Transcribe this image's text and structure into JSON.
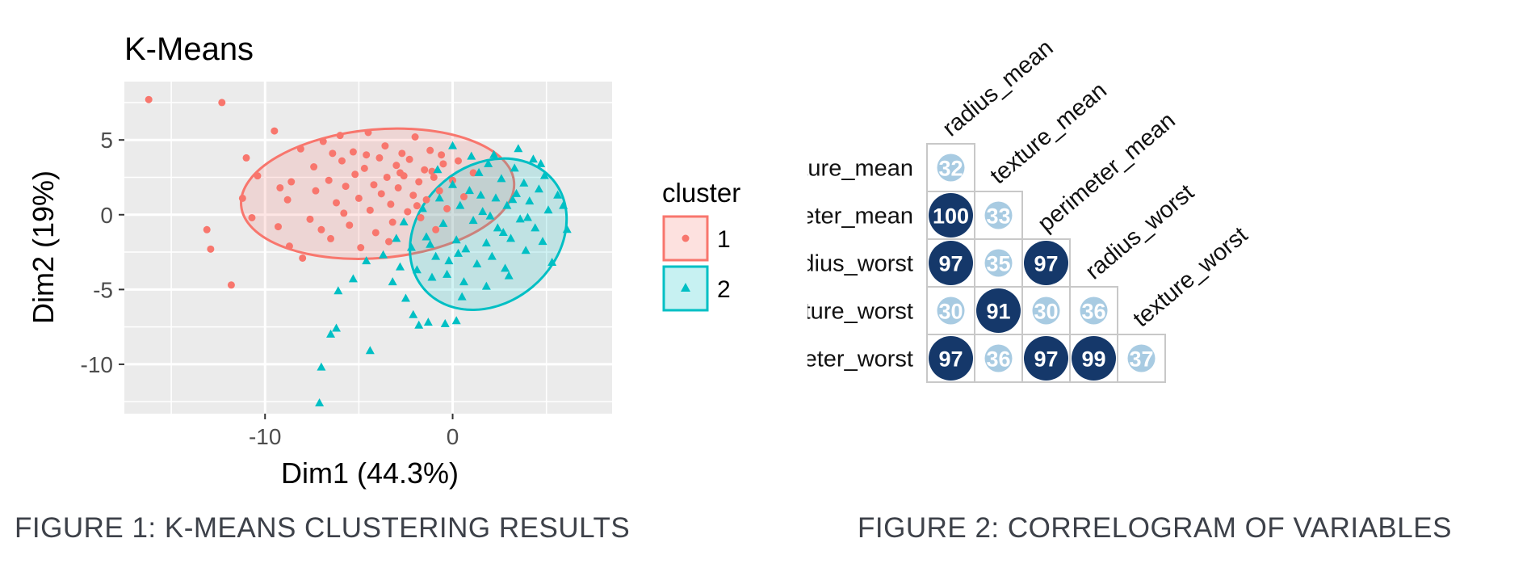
{
  "figure1": {
    "caption": "FIGURE 1: K-MEANS CLUSTERING RESULTS",
    "chart_data": {
      "type": "scatter",
      "title": "K-Means",
      "xlabel": "Dim1 (44.3%)",
      "ylabel": "Dim2 (19%)",
      "xlim": [
        -17.5,
        8.5
      ],
      "ylim": [
        -13.3,
        8.9
      ],
      "xticks": [
        -10,
        0
      ],
      "yticks": [
        5,
        0,
        -5,
        -10
      ],
      "xtick_labels": [
        "-10",
        "0"
      ],
      "ytick_labels": [
        "5",
        "0",
        "-5",
        "-10"
      ],
      "grid": true,
      "background": "#ebebeb",
      "legend": {
        "title": "cluster",
        "position": "right",
        "entries": [
          "1",
          "2"
        ]
      },
      "series": [
        {
          "name": "1",
          "marker": "circle",
          "color": "#f8766d",
          "ellipse": {
            "cx": -4.0,
            "cy": 1.4,
            "rx": 7.3,
            "ry": 4.3,
            "angle_deg": 5
          },
          "points": [
            [
              -16.2,
              7.7
            ],
            [
              -12.3,
              7.5
            ],
            [
              -13.1,
              -1.0
            ],
            [
              -12.9,
              -2.3
            ],
            [
              -11.8,
              -4.7
            ],
            [
              -11.2,
              1.1
            ],
            [
              -11.0,
              3.8
            ],
            [
              -10.4,
              2.6
            ],
            [
              -9.5,
              5.6
            ],
            [
              -9.2,
              1.8
            ],
            [
              -9.3,
              -0.8
            ],
            [
              -8.7,
              -2.1
            ],
            [
              -8.6,
              2.2
            ],
            [
              -8.8,
              1.0
            ],
            [
              -8.1,
              4.4
            ],
            [
              -8.0,
              -2.9
            ],
            [
              -7.6,
              -0.3
            ],
            [
              -7.4,
              3.2
            ],
            [
              -7.3,
              1.6
            ],
            [
              -6.9,
              4.9
            ],
            [
              -6.6,
              2.3
            ],
            [
              -6.5,
              -1.6
            ],
            [
              -6.2,
              0.8
            ],
            [
              -6.0,
              5.3
            ],
            [
              -5.9,
              3.6
            ],
            [
              -5.7,
              1.9
            ],
            [
              -5.5,
              -0.7
            ],
            [
              -5.3,
              4.2
            ],
            [
              -5.2,
              2.7
            ],
            [
              -5.0,
              1.1
            ],
            [
              -4.9,
              -2.2
            ],
            [
              -4.7,
              3.1
            ],
            [
              -4.5,
              5.5
            ],
            [
              -4.4,
              0.3
            ],
            [
              -4.2,
              2.0
            ],
            [
              -4.1,
              -1.2
            ],
            [
              -3.9,
              3.8
            ],
            [
              -3.8,
              1.4
            ],
            [
              -3.6,
              4.6
            ],
            [
              -3.5,
              2.5
            ],
            [
              -3.3,
              0.7
            ],
            [
              -3.2,
              -0.5
            ],
            [
              -3.0,
              3.3
            ],
            [
              -2.9,
              1.8
            ],
            [
              -2.7,
              4.1
            ],
            [
              -2.6,
              2.6
            ],
            [
              -2.4,
              0.2
            ],
            [
              -2.3,
              3.7
            ],
            [
              -2.1,
              1.3
            ],
            [
              -2.0,
              5.2
            ],
            [
              -1.8,
              2.2
            ],
            [
              -1.7,
              -0.2
            ],
            [
              -1.5,
              3.0
            ],
            [
              -1.4,
              1.0
            ],
            [
              -1.2,
              4.3
            ],
            [
              -1.0,
              2.5
            ],
            [
              -0.9,
              -1.0
            ],
            [
              -0.7,
              1.6
            ],
            [
              -0.5,
              3.4
            ],
            [
              -0.3,
              0.4
            ],
            [
              0.0,
              2.3
            ],
            [
              0.3,
              3.6
            ],
            [
              0.6,
              1.2
            ],
            [
              1.1,
              2.8
            ],
            [
              -10.7,
              -0.2
            ],
            [
              -7.0,
              -1.0
            ],
            [
              -6.4,
              4.1
            ],
            [
              -5.8,
              0.1
            ],
            [
              -4.6,
              4.0
            ],
            [
              -3.4,
              -1.8
            ],
            [
              -2.8,
              2.8
            ],
            [
              -1.9,
              0.6
            ],
            [
              -1.1,
              2.9
            ],
            [
              -0.6,
              4.0
            ]
          ]
        },
        {
          "name": "2",
          "marker": "triangle",
          "color": "#00bfc4",
          "ellipse": {
            "cx": 1.9,
            "cy": -1.3,
            "rx": 4.5,
            "ry": 4.6,
            "angle_deg": 40
          },
          "points": [
            [
              -7.1,
              -12.6
            ],
            [
              -7.0,
              -10.2
            ],
            [
              -6.5,
              -8.0
            ],
            [
              -6.2,
              -7.6
            ],
            [
              -4.4,
              -9.1
            ],
            [
              -6.1,
              -5.1
            ],
            [
              -5.3,
              -4.3
            ],
            [
              -4.6,
              -3.1
            ],
            [
              -3.7,
              -2.7
            ],
            [
              -3.2,
              -4.5
            ],
            [
              -2.8,
              -3.5
            ],
            [
              -2.5,
              -5.6
            ],
            [
              -2.1,
              -6.7
            ],
            [
              -1.8,
              -7.4
            ],
            [
              -1.3,
              -7.2
            ],
            [
              -0.4,
              -7.3
            ],
            [
              0.2,
              -7.1
            ],
            [
              -3.0,
              -1.6
            ],
            [
              -2.6,
              -0.5
            ],
            [
              -2.2,
              -2.2
            ],
            [
              -1.9,
              -3.7
            ],
            [
              -1.6,
              0.4
            ],
            [
              -1.4,
              -1.5
            ],
            [
              -1.1,
              -4.2
            ],
            [
              -0.9,
              -2.8
            ],
            [
              -0.7,
              1.1
            ],
            [
              -0.5,
              -0.6
            ],
            [
              -0.2,
              -3.1
            ],
            [
              0.0,
              2.0
            ],
            [
              0.2,
              -1.7
            ],
            [
              0.4,
              0.6
            ],
            [
              0.6,
              -4.5
            ],
            [
              0.7,
              -2.3
            ],
            [
              0.9,
              1.6
            ],
            [
              1.1,
              -0.4
            ],
            [
              1.3,
              -3.3
            ],
            [
              1.4,
              2.8
            ],
            [
              1.6,
              0.2
            ],
            [
              1.8,
              -1.9
            ],
            [
              1.9,
              3.4
            ],
            [
              2.1,
              -2.8
            ],
            [
              2.3,
              1.1
            ],
            [
              2.4,
              -0.9
            ],
            [
              2.6,
              2.4
            ],
            [
              2.8,
              -3.6
            ],
            [
              2.9,
              0.6
            ],
            [
              3.1,
              -1.6
            ],
            [
              3.3,
              3.1
            ],
            [
              3.4,
              1.4
            ],
            [
              3.6,
              -0.3
            ],
            [
              3.8,
              2.1
            ],
            [
              3.9,
              -2.4
            ],
            [
              4.1,
              0.9
            ],
            [
              4.3,
              3.7
            ],
            [
              4.4,
              -0.9
            ],
            [
              4.6,
              1.7
            ],
            [
              4.8,
              -1.8
            ],
            [
              4.9,
              2.6
            ],
            [
              5.1,
              0.3
            ],
            [
              5.3,
              -3.2
            ],
            [
              5.6,
              1.3
            ],
            [
              5.9,
              0.6
            ],
            [
              6.1,
              -1.0
            ],
            [
              0.5,
              -5.5
            ],
            [
              1.8,
              -4.8
            ],
            [
              3.0,
              -4.1
            ],
            [
              -0.8,
              3.0
            ],
            [
              0.0,
              4.6
            ],
            [
              2.2,
              4.0
            ],
            [
              3.5,
              4.4
            ],
            [
              4.7,
              3.4
            ],
            [
              1.0,
              3.9
            ],
            [
              -1.2,
              -2.0
            ],
            [
              2.0,
              -0.1
            ],
            [
              3.2,
              1.0
            ],
            [
              4.0,
              -0.2
            ],
            [
              1.5,
              1.3
            ],
            [
              2.7,
              -1.2
            ],
            [
              0.3,
              -2.6
            ],
            [
              -0.3,
              -4.0
            ]
          ]
        }
      ]
    }
  },
  "figure2": {
    "caption": "FIGURE 2: CORRELOGRAM OF VARIABLES",
    "chart_data": {
      "type": "heatmap",
      "subtype": "correlogram-lower-triangle",
      "row_labels": [
        "texture_mean",
        "perimeter_mean",
        "radius_worst",
        "texture_worst",
        "perimeter_worst"
      ],
      "column_labels": [
        "radius_mean",
        "texture_mean",
        "perimeter_mean",
        "radius_worst",
        "texture_worst"
      ],
      "values": [
        [
          32
        ],
        [
          100,
          33
        ],
        [
          97,
          35,
          97
        ],
        [
          30,
          91,
          30,
          36
        ],
        [
          97,
          36,
          97,
          99,
          37
        ]
      ],
      "colors": {
        "high": "#15386a",
        "low": "#a8cbe2"
      }
    }
  }
}
